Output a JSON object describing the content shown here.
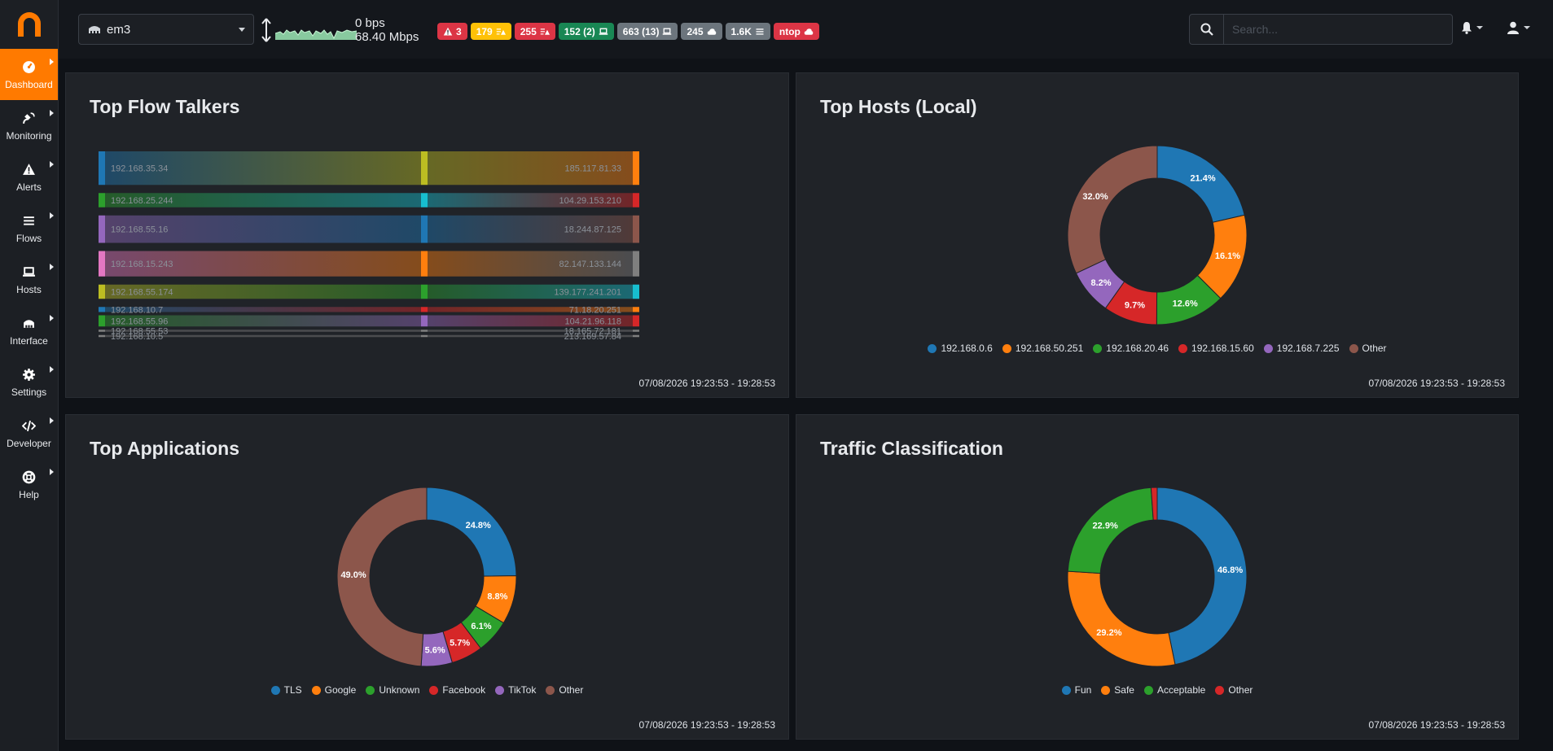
{
  "nav": [
    {
      "label": "Dashboard",
      "icon": "dashboard-icon",
      "active": true
    },
    {
      "label": "Monitoring",
      "icon": "satellite-icon"
    },
    {
      "label": "Alerts",
      "icon": "warning-icon"
    },
    {
      "label": "Flows",
      "icon": "list-icon"
    },
    {
      "label": "Hosts",
      "icon": "laptop-icon"
    },
    {
      "label": "Interface",
      "icon": "interface-icon"
    },
    {
      "label": "Settings",
      "icon": "gear-icon"
    },
    {
      "label": "Developer",
      "icon": "code-icon"
    },
    {
      "label": "Help",
      "icon": "lifebuoy-icon"
    }
  ],
  "topbar": {
    "interface": "em3",
    "upload": "0 bps",
    "download": "68.40 Mbps",
    "search_placeholder": "Search...",
    "badges": [
      {
        "text": "3",
        "color": "#dc3545",
        "icon": "warning-icon",
        "icon_pos": "before"
      },
      {
        "text": "179",
        "color": "#ffc107",
        "icon": "list-warning-icon",
        "icon_pos": "after"
      },
      {
        "text": "255",
        "color": "#dc3545",
        "icon": "list-warning-icon",
        "icon_pos": "after"
      },
      {
        "text": "152 (2)",
        "color": "#198754",
        "icon": "laptop-icon",
        "icon_pos": "after"
      },
      {
        "text": "663 (13)",
        "color": "#6c757d",
        "icon": "laptop-icon",
        "icon_pos": "after"
      },
      {
        "text": "245",
        "color": "#6c757d",
        "icon": "cloud-icon",
        "icon_pos": "after"
      },
      {
        "text": "1.6K",
        "color": "#6c757d",
        "icon": "list-icon",
        "icon_pos": "after"
      },
      {
        "text": "ntop",
        "color": "#dc3545",
        "icon": "cloud-icon",
        "icon_pos": "after"
      }
    ]
  },
  "cards": {
    "flow_talkers": {
      "title": "Top Flow Talkers",
      "time": "07/08/2026 19:23:53 - 19:28:53"
    },
    "hosts": {
      "title": "Top Hosts (Local)",
      "time": "07/08/2026 19:23:53 - 19:28:53"
    },
    "apps": {
      "title": "Top Applications",
      "time": "07/08/2026 19:23:53 - 19:28:53"
    },
    "classification": {
      "title": "Traffic Classification",
      "time": "07/08/2026 19:23:53 - 19:28:53"
    }
  },
  "colors": {
    "accent": "#ff7a00",
    "palette": [
      "#1f77b4",
      "#ff7f0e",
      "#2ca02c",
      "#d62728",
      "#9467bd",
      "#8c564b",
      "#e377c2",
      "#7f7f7f",
      "#bcbd22",
      "#17becf"
    ]
  },
  "chart_data": [
    {
      "id": "flow_talkers",
      "type": "sankey",
      "title": "Top Flow Talkers",
      "flows": [
        {
          "source": "192.168.35.34",
          "target": "185.117.81.33",
          "value": 33
        },
        {
          "source": "192.168.25.244",
          "target": "104.29.153.210",
          "value": 14
        },
        {
          "source": "192.168.55.16",
          "target": "18.244.87.125",
          "value": 27
        },
        {
          "source": "192.168.15.243",
          "target": "82.147.133.144",
          "value": 25
        },
        {
          "source": "192.168.55.174",
          "target": "139.177.241.201",
          "value": 14
        },
        {
          "source": "192.168.10.7",
          "target": "71.18.20.251",
          "value": 5
        },
        {
          "source": "192.168.55.96",
          "target": "104.21.96.118",
          "value": 11
        },
        {
          "source": "192.168.55.53",
          "target": "18.165.72.181",
          "value": 2
        },
        {
          "source": "192.168.10.5",
          "target": "213.169.57.84",
          "value": 2
        }
      ]
    },
    {
      "id": "hosts",
      "type": "pie",
      "title": "Top Hosts (Local)",
      "labels": [
        "192.168.0.6",
        "192.168.50.251",
        "192.168.20.46",
        "192.168.15.60",
        "192.168.7.225",
        "Other"
      ],
      "values": [
        21.4,
        16.1,
        12.6,
        9.7,
        8.2,
        32.0
      ]
    },
    {
      "id": "apps",
      "type": "pie",
      "title": "Top Applications",
      "labels": [
        "TLS",
        "Google",
        "Unknown",
        "Facebook",
        "TikTok",
        "Other"
      ],
      "values": [
        24.8,
        8.8,
        6.1,
        5.7,
        5.6,
        49.0
      ]
    },
    {
      "id": "classification",
      "type": "pie",
      "title": "Traffic Classification",
      "labels": [
        "Fun",
        "Safe",
        "Acceptable",
        "Other"
      ],
      "values": [
        46.8,
        29.2,
        22.9,
        1.1
      ]
    }
  ]
}
